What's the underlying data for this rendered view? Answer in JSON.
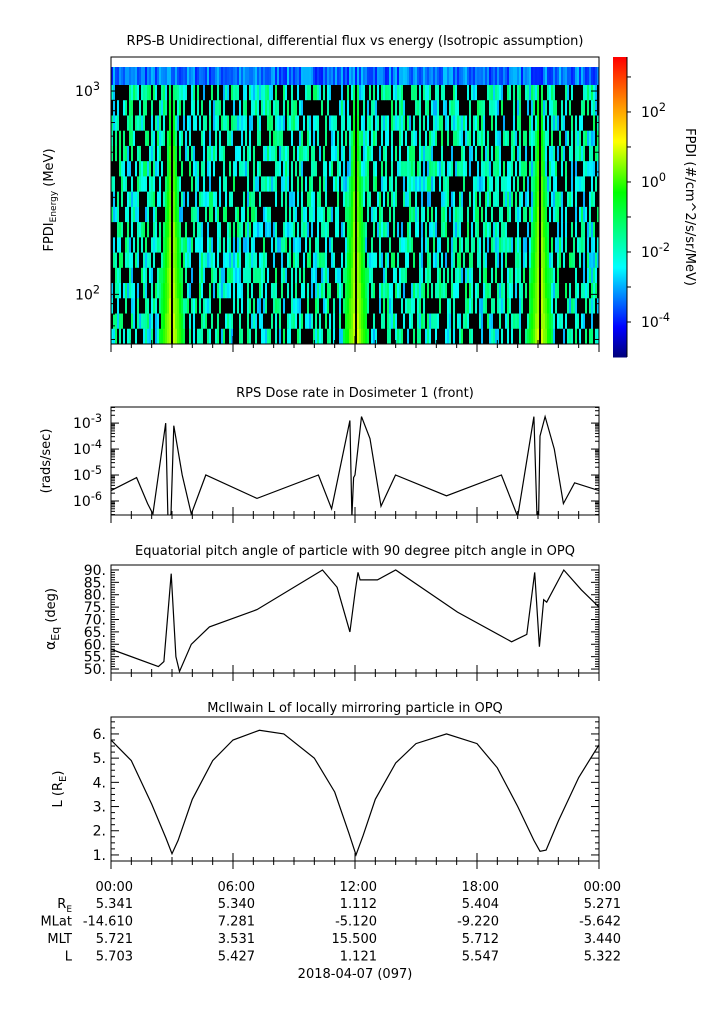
{
  "chart_data": [
    {
      "type": "heatmap",
      "title": "RPS-B  Unidirectional, differential flux vs energy (Isotropic assumption)",
      "ylabel": "FPDI",
      "ylabel_sub": "Energy",
      "ylabel_unit": "(MeV)",
      "yscale": "log",
      "ylim": [
        57,
        1470
      ],
      "yticks": [
        {
          "value": 100,
          "base": "10",
          "exp": "2"
        },
        {
          "value": 1000,
          "base": "10",
          "exp": "3"
        }
      ],
      "xlim_hours": [
        0,
        24
      ],
      "colorbar": {
        "label": "FPDI (#/cm^2/s/sr/MeV)",
        "range_log10": [
          -5,
          3.57
        ],
        "ticks": [
          {
            "base": "10",
            "exp": "2",
            "log10": 2
          },
          {
            "base": "10",
            "exp": "0",
            "log10": 0
          },
          {
            "base": "10",
            "exp": "-2",
            "log10": -2
          },
          {
            "base": "10",
            "exp": "-4",
            "log10": -4
          }
        ]
      },
      "band_centers_hours": [
        3.0,
        12.05,
        21.1
      ],
      "background_log10": [
        -3,
        -1
      ],
      "band_peak_log10": 1
    },
    {
      "type": "line",
      "title": "RPS  Dose rate in Dosimeter 1 (front)",
      "ylabel": "(rads/sec)",
      "yscale": "log",
      "ylim_log10": [
        -6.54,
        -2.38
      ],
      "yticks": [
        {
          "base": "10",
          "exp": "-3",
          "log10": -3
        },
        {
          "base": "10",
          "exp": "-4",
          "log10": -4
        },
        {
          "base": "10",
          "exp": "-5",
          "log10": -5
        },
        {
          "base": "10",
          "exp": "-6",
          "log10": -6
        }
      ],
      "x_hours": [
        0,
        1.26,
        1.8,
        2.06,
        2.69,
        2.8,
        2.87,
        2.95,
        3.09,
        3.5,
        3.95,
        4.66,
        7.18,
        10.2,
        10.85,
        11.75,
        11.85,
        11.93,
        12.0,
        12.32,
        12.74,
        13.28,
        13.99,
        16.5,
        19.2,
        20.0,
        20.8,
        20.95,
        21.03,
        21.1,
        21.35,
        21.8,
        22.25,
        22.8,
        24
      ],
      "y_log10": [
        -5.6,
        -5.1,
        -6.1,
        -6.5,
        -3.0,
        -6.6,
        -6.6,
        -6.5,
        -3.1,
        -5.0,
        -6.5,
        -5.0,
        -5.9,
        -5.0,
        -6.3,
        -2.9,
        -6.6,
        -5.1,
        -5.0,
        -2.75,
        -3.6,
        -6.2,
        -5.0,
        -5.8,
        -5.0,
        -6.6,
        -2.75,
        -6.6,
        -6.6,
        -3.5,
        -2.75,
        -4.0,
        -6.1,
        -5.3,
        -5.6
      ]
    },
    {
      "type": "line",
      "title": "Equatorial pitch angle of particle with 90 degree pitch angle in OPQ",
      "ylabel": "α",
      "ylabel_sub": "Eq",
      "ylabel_unit": "(deg)",
      "ylim": [
        48.4,
        92
      ],
      "yticks": [
        "90.",
        "85.",
        "80.",
        "75.",
        "70.",
        "65.",
        "60.",
        "55.",
        "50."
      ],
      "x_hours": [
        0,
        2.33,
        2.6,
        2.96,
        3.19,
        3.37,
        3.95,
        4.84,
        7.18,
        10.4,
        11.12,
        11.75,
        12.02,
        12.15,
        12.25,
        13.1,
        14.0,
        17.04,
        19.7,
        20.45,
        20.84,
        21.07,
        21.28,
        21.43,
        22.27,
        23.13,
        24
      ],
      "y": [
        58,
        51,
        53,
        88.5,
        55,
        49,
        60,
        67,
        74,
        90,
        83,
        65,
        82,
        89,
        86,
        86,
        90,
        73,
        61,
        64,
        89,
        59,
        78,
        77,
        90,
        82,
        75
      ]
    },
    {
      "type": "line",
      "title": "McIlwain L of locally mirroring particle in OPQ",
      "ylabel": "L (R",
      "ylabel_sub": "E",
      "ylabel_unit": ")",
      "ylim": [
        0.75,
        6.7
      ],
      "yticks": [
        "1.",
        "2.",
        "3.",
        "4.",
        "5.",
        "6."
      ],
      "x_hours": [
        0,
        1,
        2,
        2.7,
        3.0,
        3.3,
        4,
        5,
        6,
        7.3,
        8.5,
        10,
        11,
        11.7,
        12.05,
        12.4,
        13,
        14,
        15,
        16.5,
        18,
        19,
        20,
        20.8,
        21.1,
        21.4,
        22,
        23,
        24
      ],
      "y": [
        5.75,
        4.9,
        3.1,
        1.7,
        1.05,
        1.6,
        3.3,
        4.9,
        5.75,
        6.15,
        6.0,
        5.0,
        3.6,
        1.9,
        1.0,
        1.8,
        3.3,
        4.8,
        5.6,
        6.0,
        5.6,
        4.6,
        3.0,
        1.6,
        1.15,
        1.2,
        2.4,
        4.2,
        5.55
      ]
    }
  ],
  "x_axis": {
    "tick_labels": [
      "00:00",
      "06:00",
      "12:00",
      "18:00",
      "00:00"
    ],
    "ephemeris": [
      {
        "label": "R",
        "label_sub": "E",
        "values": [
          "5.341",
          "5.340",
          "1.112",
          "5.404",
          "5.271"
        ]
      },
      {
        "label": "MLat",
        "label_sub": "",
        "values": [
          "-14.610",
          "7.281",
          "-5.120",
          "-9.220",
          "-5.642"
        ]
      },
      {
        "label": "MLT",
        "label_sub": "",
        "values": [
          "5.721",
          "3.531",
          "15.500",
          "5.712",
          "3.440"
        ]
      },
      {
        "label": "L",
        "label_sub": "",
        "values": [
          "5.703",
          "5.427",
          "1.121",
          "5.547",
          "5.322"
        ]
      }
    ],
    "date_label": "2018-04-07 (097)"
  }
}
